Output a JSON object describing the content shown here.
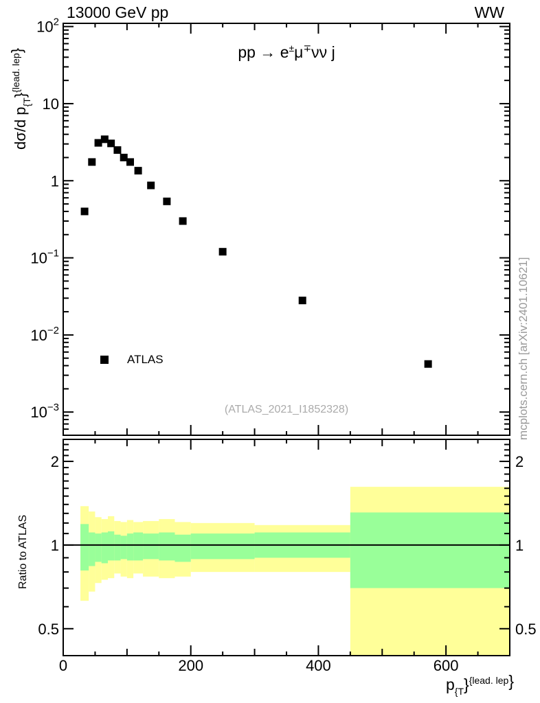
{
  "header": {
    "energy_title": "13000 GeV pp",
    "group_title": "WW"
  },
  "process_label": {
    "left": "pp",
    "arrow": " → ",
    "e_base": "e",
    "e_sup": "±",
    "mu_base": "μ",
    "mu_sup": "∓",
    "tail": "νν j"
  },
  "legend": {
    "atlas_label": "ATLAS",
    "marker_color": "#000000"
  },
  "watermark": "(ATLAS_2021_I1852328)",
  "side_note": "mcplots.cern.ch [arXiv:2401.10621]",
  "axis_titles": {
    "y_main": {
      "prefix": "dσ/d p",
      "sub": "{T",
      "mid": "}",
      "sup": "{lead. lep",
      "end": "}"
    },
    "y_ratio": "Ratio to ATLAS",
    "x": {
      "base": "p",
      "sub": "{T",
      "mid": "}",
      "sup": "{lead. lep",
      "end": "}"
    }
  },
  "colors": {
    "band_outer": "#ffff99",
    "band_inner": "#99ff99",
    "marker": "#000000",
    "frame": "#000000",
    "gray_text": "#999999"
  },
  "chart_data": [
    {
      "type": "scatter",
      "panel": "main",
      "title": "13000 GeV pp",
      "title_right": "WW",
      "annotation": "pp → e±μ∓νν j",
      "xlabel": "p_{T}^{lead. lep}",
      "ylabel": "dσ/d p_{T}^{lead. lep}",
      "xlim": [
        0,
        700
      ],
      "ylim": [
        0.0005,
        110
      ],
      "yscale": "log",
      "legend_position": "left-lower",
      "series": [
        {
          "name": "ATLAS",
          "marker": "filled-square",
          "color": "#000000",
          "x": [
            33.5,
            45,
            55,
            65,
            75,
            85,
            95,
            105,
            117.5,
            137.5,
            162.5,
            187.5,
            250,
            375,
            572
          ],
          "y": [
            0.4,
            1.75,
            3.1,
            3.45,
            3.05,
            2.5,
            2.0,
            1.75,
            1.35,
            0.87,
            0.54,
            0.3,
            0.12,
            0.028,
            0.0042
          ]
        }
      ],
      "yticks": [
        {
          "v": 100,
          "base": "10",
          "exp": "2"
        },
        {
          "v": 10,
          "base": "10",
          "exp": ""
        },
        {
          "v": 1,
          "base": "1",
          "exp": ""
        },
        {
          "v": 0.1,
          "base": "10",
          "exp": "−1"
        },
        {
          "v": 0.01,
          "base": "10",
          "exp": "−2"
        },
        {
          "v": 0.001,
          "base": "10",
          "exp": "−3"
        }
      ],
      "xticks": [
        {
          "v": 0,
          "label": "0"
        },
        {
          "v": 200,
          "label": "200"
        },
        {
          "v": 400,
          "label": "400"
        },
        {
          "v": 600,
          "label": "600"
        }
      ],
      "xtick_mid_step": 100,
      "xtick_minor_step": 50
    },
    {
      "type": "band-ratio",
      "panel": "ratio",
      "ylabel": "Ratio to ATLAS",
      "xlim": [
        0,
        700
      ],
      "ylim": [
        0.4,
        2.4
      ],
      "yscale": "log",
      "reference_line": 1,
      "yticks": [
        {
          "v": 0.5,
          "label": "0.5"
        },
        {
          "v": 1,
          "label": "1"
        },
        {
          "v": 2,
          "label": "2"
        }
      ],
      "ytick_minor_step": 0.1,
      "bin_edges": [
        27,
        40,
        50,
        60,
        70,
        80,
        90,
        100,
        110,
        125,
        150,
        175,
        200,
        300,
        450,
        700
      ],
      "bands": [
        {
          "name": "outer-uncertainty",
          "color": "#ffff99",
          "lo": [
            0.63,
            0.68,
            0.73,
            0.75,
            0.76,
            0.79,
            0.77,
            0.76,
            0.79,
            0.77,
            0.76,
            0.77,
            0.8,
            0.8,
            0.35
          ],
          "hi": [
            1.38,
            1.32,
            1.26,
            1.24,
            1.27,
            1.22,
            1.21,
            1.23,
            1.21,
            1.22,
            1.24,
            1.21,
            1.2,
            1.18,
            1.62
          ]
        },
        {
          "name": "inner-uncertainty",
          "color": "#99ff99",
          "lo": [
            0.81,
            0.84,
            0.87,
            0.86,
            0.88,
            0.88,
            0.89,
            0.88,
            0.88,
            0.89,
            0.88,
            0.87,
            0.89,
            0.9,
            0.7
          ],
          "hi": [
            1.19,
            1.11,
            1.1,
            1.11,
            1.12,
            1.09,
            1.08,
            1.1,
            1.11,
            1.1,
            1.11,
            1.09,
            1.1,
            1.11,
            1.31
          ]
        }
      ]
    }
  ]
}
